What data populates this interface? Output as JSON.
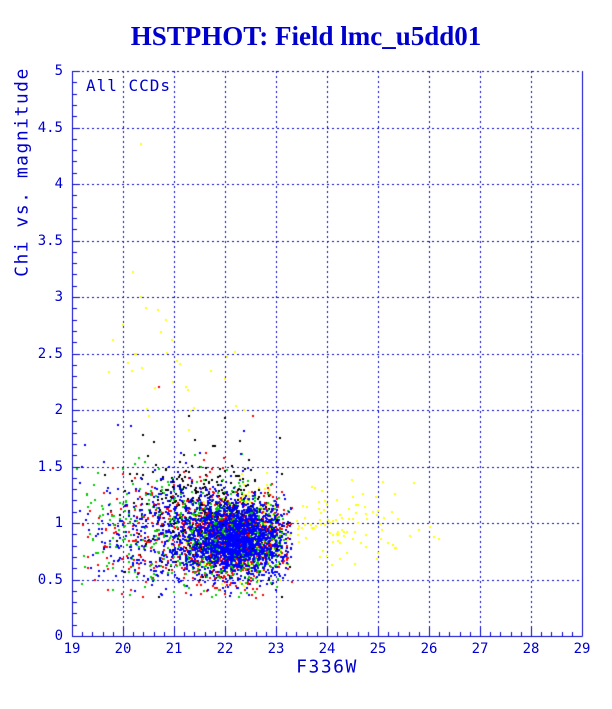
{
  "chart_data": {
    "type": "scatter",
    "title": "HSTPHOT: Field lmc_u5dd01",
    "annotation": "All CCDs",
    "xlabel": "F336W",
    "ylabel": "Chi vs. magnitude",
    "xlim": [
      19,
      29
    ],
    "ylim": [
      0,
      5
    ],
    "x_tick_labels": [
      "19",
      "20",
      "21",
      "22",
      "23",
      "24",
      "25",
      "26",
      "27",
      "28",
      "29"
    ],
    "y_tick_labels": [
      "0",
      "0.5",
      "1",
      "1.5",
      "2",
      "2.5",
      "3",
      "3.5",
      "4",
      "4.5",
      "5"
    ],
    "x_major_step": 1,
    "x_minor_step": 0.2,
    "y_major_step": 0.5,
    "y_minor_step": 0.1,
    "grid": true,
    "legend": false,
    "marker": "square",
    "marker_size_px": 2,
    "seed": 12345,
    "colors": {
      "axis": "#0000cc",
      "grid": "#0000cc",
      "text": "#0000cc",
      "title": "#0000cc",
      "background": "#ffffff"
    },
    "default_bounds": {
      "xmin": 19.02,
      "xmax": 23.33,
      "ymin": 0.34,
      "ymax": 1.88
    },
    "series": [
      {
        "name": "ccd-yellow",
        "color": "#ffff00",
        "clusters": [
          {
            "n": 380,
            "cx": 22.4,
            "sx": 0.5,
            "cy": 0.9,
            "sy": 0.18
          },
          {
            "n": 90,
            "cx": 24.3,
            "sx": 0.9,
            "cy": 0.95,
            "sy": 0.17,
            "xmin": 23.35,
            "xmax": 26.35,
            "ymin": 0.62,
            "ymax": 1.42
          },
          {
            "n": 25,
            "cx": 21.2,
            "sx": 0.7,
            "cy": 2.3,
            "sy": 0.35,
            "xmin": 19.7,
            "xmax": 22.7,
            "ymin": 1.88,
            "ymax": 3.05
          }
        ],
        "outliers": [
          [
            20.35,
            4.35
          ],
          [
            20.2,
            3.22
          ],
          [
            20.35,
            3.0
          ],
          [
            20.45,
            2.9
          ],
          [
            19.8,
            2.62
          ],
          [
            20.0,
            2.75
          ],
          [
            20.1,
            2.42
          ],
          [
            25.1,
            1.36
          ],
          [
            25.7,
            1.35
          ],
          [
            24.5,
            1.23
          ],
          [
            23.7,
            1.32
          ],
          [
            23.9,
            1.28
          ],
          [
            26.2,
            0.86
          ],
          [
            26.1,
            0.88
          ],
          [
            21.3,
            1.82
          ],
          [
            20.5,
            1.95
          ]
        ]
      },
      {
        "name": "ccd-black",
        "color": "#000000",
        "clusters": [
          {
            "n": 280,
            "cx": 22.1,
            "sx": 0.5,
            "cy": 0.95,
            "sy": 0.2
          },
          {
            "n": 230,
            "cx": 21.3,
            "sx": 0.8,
            "cy": 1.15,
            "sy": 0.3
          }
        ],
        "outliers": [
          [
            20.4,
            1.78
          ],
          [
            20.6,
            1.72
          ],
          [
            21.3,
            1.95
          ],
          [
            22.0,
            1.93
          ]
        ]
      },
      {
        "name": "ccd-red",
        "color": "#ff0000",
        "clusters": [
          {
            "n": 720,
            "cx": 22.25,
            "sx": 0.5,
            "cy": 0.85,
            "sy": 0.17
          },
          {
            "n": 280,
            "cx": 21.0,
            "sx": 0.85,
            "cy": 0.9,
            "sy": 0.28
          }
        ],
        "outliers": [
          [
            20.7,
            2.2
          ],
          [
            22.55,
            1.95
          ]
        ]
      },
      {
        "name": "ccd-green",
        "color": "#00cc00",
        "clusters": [
          {
            "n": 680,
            "cx": 22.2,
            "sx": 0.5,
            "cy": 0.85,
            "sy": 0.17
          },
          {
            "n": 280,
            "cx": 21.0,
            "sx": 0.9,
            "cy": 0.88,
            "sy": 0.28
          }
        ],
        "outliers": [
          [
            19.1,
            1.48
          ],
          [
            19.5,
            1.44
          ]
        ]
      },
      {
        "name": "ccd-blue",
        "color": "#0000ff",
        "clusters": [
          {
            "n": 1500,
            "cx": 22.25,
            "sx": 0.48,
            "cy": 0.86,
            "sy": 0.16
          },
          {
            "n": 550,
            "cx": 21.2,
            "sx": 0.85,
            "cy": 0.92,
            "sy": 0.26
          }
        ],
        "outliers": [
          [
            19.25,
            1.69
          ],
          [
            19.9,
            1.87
          ],
          [
            20.15,
            1.86
          ]
        ]
      }
    ]
  }
}
